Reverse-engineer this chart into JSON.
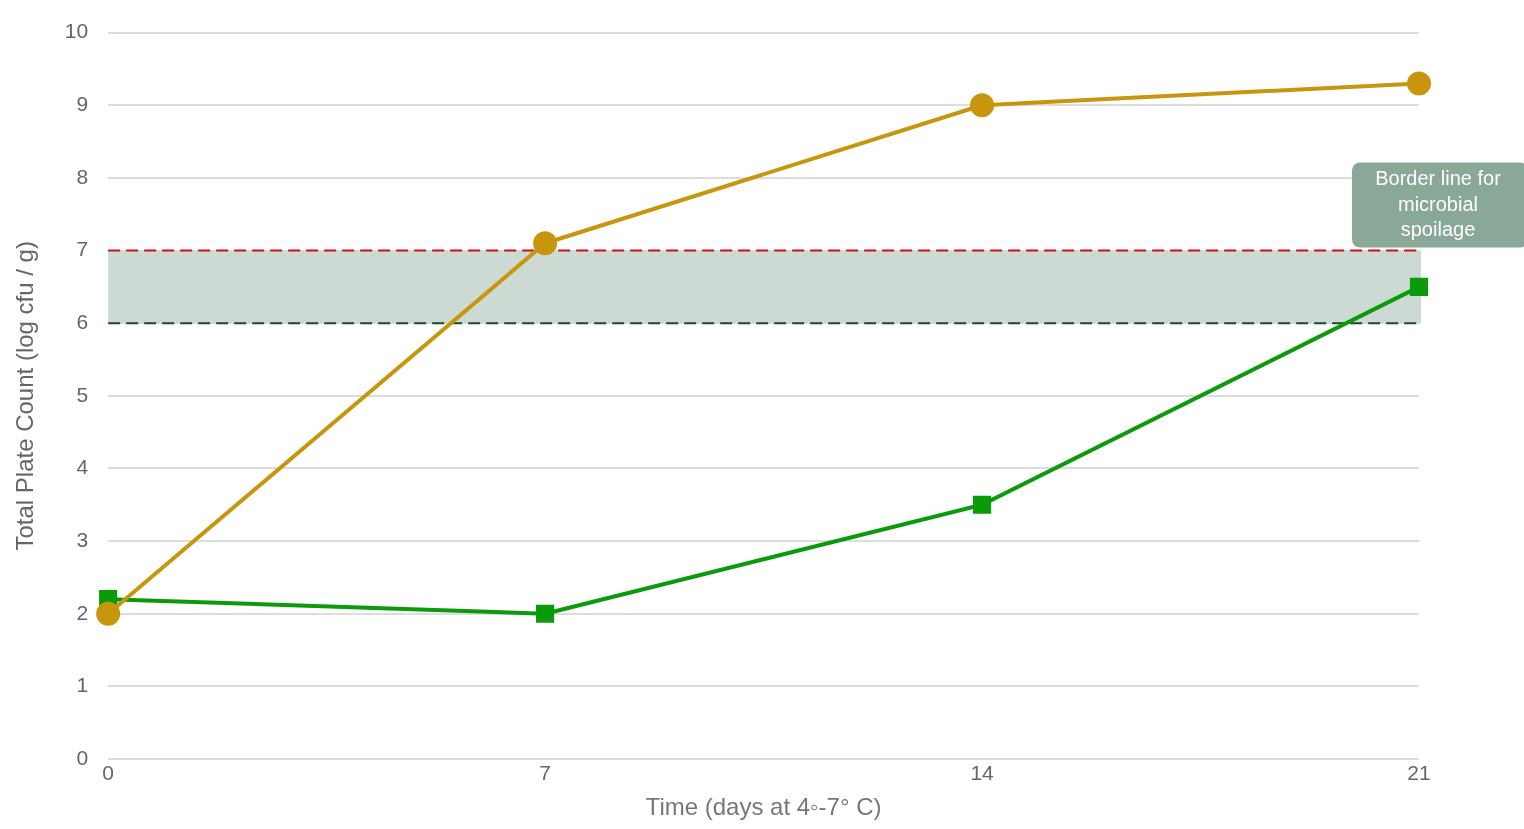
{
  "chart_data": {
    "type": "line",
    "xlabel": "Time (days at 4◦-7° C)",
    "ylabel": "Total Plate Count (log cfu / g)",
    "x": [
      0,
      7,
      14,
      21
    ],
    "xlim": [
      0,
      21
    ],
    "xticks": [
      0,
      7,
      14,
      21
    ],
    "ylim": [
      0,
      10
    ],
    "yticks": [
      0,
      1,
      2,
      3,
      4,
      5,
      6,
      7,
      8,
      9,
      10
    ],
    "series": [
      {
        "color": "#c8960c",
        "marker": "circle",
        "values": [
          2.0,
          7.1,
          9.0,
          9.3
        ]
      },
      {
        "color": "#0a9a0a",
        "marker": "square",
        "values": [
          2.2,
          2.0,
          3.5,
          6.5
        ]
      }
    ],
    "bands": [
      {
        "axis": "y",
        "from": 6,
        "to": 7,
        "label": "Border line for microbial spoilage",
        "color": "#cdd9d3"
      }
    ],
    "ref_lines": [
      {
        "axis": "y",
        "value": 7,
        "color": "#cc1111",
        "line_style": "dashed"
      },
      {
        "axis": "y",
        "value": 6,
        "color": "#1a4a2a",
        "line_style": "dashed"
      }
    ],
    "grid": "y",
    "legend": false,
    "line_style": "solid"
  }
}
